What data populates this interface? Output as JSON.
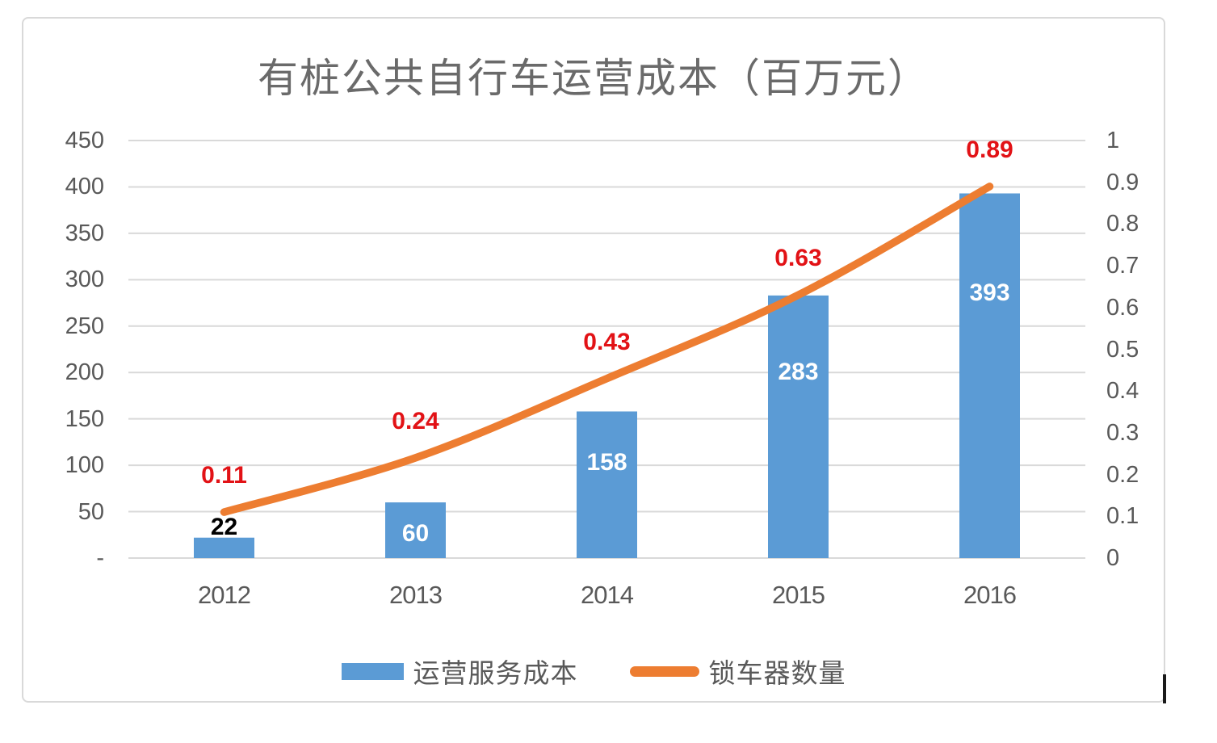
{
  "title": "有桩公共自行车运营成本（百万元）",
  "chart_data": {
    "type": "combo-bar-line",
    "title": "有桩公共自行车运营成本（百万元）",
    "categories": [
      "2012",
      "2013",
      "2014",
      "2015",
      "2016"
    ],
    "series": [
      {
        "name": "运营服务成本",
        "type": "bar",
        "axis": "left",
        "color": "#5b9bd5",
        "values": [
          22,
          60,
          158,
          283,
          393
        ],
        "labels": [
          "22",
          "60",
          "158",
          "283",
          "393"
        ],
        "label_colors": [
          "#000000",
          "#ffffff",
          "#ffffff",
          "#ffffff",
          "#ffffff"
        ]
      },
      {
        "name": "锁车器数量",
        "type": "line",
        "smooth": true,
        "axis": "right",
        "color": "#ed7d31",
        "values": [
          0.11,
          0.24,
          0.43,
          0.63,
          0.89
        ],
        "labels": [
          "0.11",
          "0.24",
          "0.43",
          "0.63",
          "0.89"
        ],
        "label_color": "#e21216"
      }
    ],
    "left_axis": {
      "min": 0,
      "max": 450,
      "step": 50,
      "ticks": [
        "450",
        "400",
        "350",
        "300",
        "250",
        "200",
        "150",
        "100",
        "50",
        "-"
      ]
    },
    "right_axis": {
      "min": 0,
      "max": 1,
      "step": 0.1,
      "ticks": [
        "1",
        "0.9",
        "0.8",
        "0.7",
        "0.6",
        "0.5",
        "0.4",
        "0.3",
        "0.2",
        "0.1",
        "0"
      ]
    },
    "grid": true,
    "legend_position": "bottom"
  },
  "legend": {
    "items": [
      {
        "label": "运营服务成本",
        "swatch": "bar",
        "color": "#5b9bd5"
      },
      {
        "label": "锁车器数量",
        "swatch": "line",
        "color": "#ed7d31"
      }
    ]
  },
  "colors": {
    "bar": "#5b9bd5",
    "line": "#ed7d31",
    "red_label": "#e21216",
    "axis_text": "#595959",
    "gridline": "#d9d9d9",
    "frame_border": "#d9d9d9",
    "title_text": "#6a6a6a"
  }
}
